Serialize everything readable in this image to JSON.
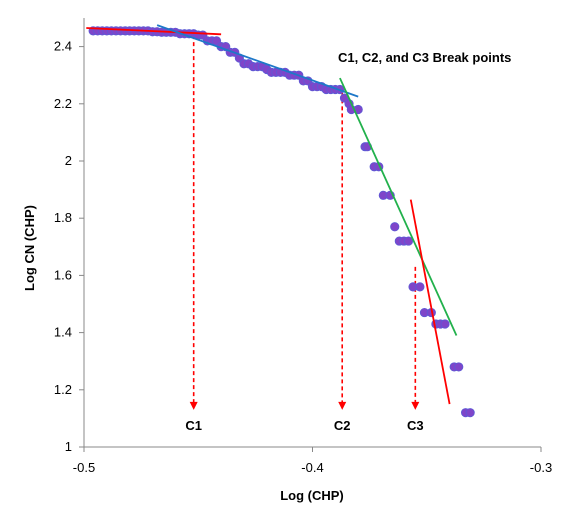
{
  "chart_data": {
    "type": "scatter",
    "xlabel": "Log (CHP)",
    "ylabel": "Log CN (CHP)",
    "xlim": [
      -0.5,
      -0.3
    ],
    "ylim": [
      1,
      2.5
    ],
    "x_ticks": [
      -0.5,
      -0.4,
      -0.3
    ],
    "x_tick_labels": [
      "-0.5",
      "-0.4",
      "-0.3"
    ],
    "y_ticks": [
      1,
      1.2,
      1.4,
      1.6,
      1.8,
      2,
      2.2,
      2.4
    ],
    "y_tick_labels": [
      "1",
      "1.2",
      "1.4",
      "1.6",
      "1.8",
      "2",
      "2.2",
      "2.4"
    ],
    "grid": false,
    "annotation": "C1, C2, and C3 Break points",
    "points": {
      "x": [
        -0.496,
        -0.494,
        -0.492,
        -0.49,
        -0.488,
        -0.486,
        -0.484,
        -0.482,
        -0.48,
        -0.478,
        -0.476,
        -0.474,
        -0.472,
        -0.47,
        -0.468,
        -0.466,
        -0.464,
        -0.462,
        -0.46,
        -0.458,
        -0.456,
        -0.454,
        -0.452,
        -0.45,
        -0.448,
        -0.446,
        -0.444,
        -0.442,
        -0.44,
        -0.438,
        -0.436,
        -0.434,
        -0.432,
        -0.43,
        -0.428,
        -0.426,
        -0.424,
        -0.422,
        -0.42,
        -0.418,
        -0.416,
        -0.414,
        -0.412,
        -0.41,
        -0.408,
        -0.406,
        -0.404,
        -0.402,
        -0.4,
        -0.398,
        -0.396,
        -0.394,
        -0.392,
        -0.39,
        -0.388,
        -0.386,
        -0.384,
        -0.383,
        -0.38,
        -0.377,
        -0.376,
        -0.373,
        -0.371,
        -0.369,
        -0.366,
        -0.364,
        -0.362,
        -0.36,
        -0.358,
        -0.356,
        -0.353,
        -0.351,
        -0.348,
        -0.346,
        -0.344,
        -0.342,
        -0.338,
        -0.336,
        -0.333,
        -0.331
      ],
      "y": [
        2.455,
        2.455,
        2.455,
        2.455,
        2.455,
        2.455,
        2.455,
        2.455,
        2.455,
        2.455,
        2.455,
        2.455,
        2.455,
        2.452,
        2.452,
        2.45,
        2.45,
        2.45,
        2.45,
        2.445,
        2.445,
        2.445,
        2.445,
        2.44,
        2.44,
        2.42,
        2.42,
        2.42,
        2.4,
        2.4,
        2.38,
        2.38,
        2.36,
        2.34,
        2.34,
        2.33,
        2.33,
        2.33,
        2.32,
        2.31,
        2.31,
        2.31,
        2.31,
        2.3,
        2.3,
        2.3,
        2.28,
        2.28,
        2.26,
        2.26,
        2.26,
        2.25,
        2.25,
        2.25,
        2.25,
        2.22,
        2.2,
        2.18,
        2.18,
        2.05,
        2.05,
        1.98,
        1.98,
        1.88,
        1.88,
        1.77,
        1.72,
        1.72,
        1.72,
        1.56,
        1.56,
        1.47,
        1.47,
        1.43,
        1.43,
        1.43,
        1.28,
        1.28,
        1.12,
        1.12
      ]
    },
    "lines": [
      {
        "color": "#ff0000",
        "x": [
          -0.499,
          -0.44
        ],
        "y": [
          2.465,
          2.443
        ]
      },
      {
        "color": "#1e78c8",
        "x": [
          -0.468,
          -0.38
        ],
        "y": [
          2.475,
          2.225
        ]
      },
      {
        "color": "#22b14c",
        "x": [
          -0.388,
          -0.337
        ],
        "y": [
          2.29,
          1.39
        ]
      },
      {
        "color": "#ff0000",
        "x": [
          -0.357,
          -0.34
        ],
        "y": [
          1.865,
          1.15
        ]
      }
    ],
    "break_points": [
      {
        "label": "C1",
        "x": -0.452,
        "y_top": 2.44,
        "y_bottom": 1.13
      },
      {
        "label": "C2",
        "x": -0.387,
        "y_top": 2.24,
        "y_bottom": 1.13
      },
      {
        "label": "C3",
        "x": -0.355,
        "y_top": 1.63,
        "y_bottom": 1.13
      }
    ],
    "colors": {
      "point_fill": "#7f45c9",
      "point_stroke": "#5b5bd6",
      "break_arrow": "#ff0000",
      "axis": "#888888"
    }
  }
}
